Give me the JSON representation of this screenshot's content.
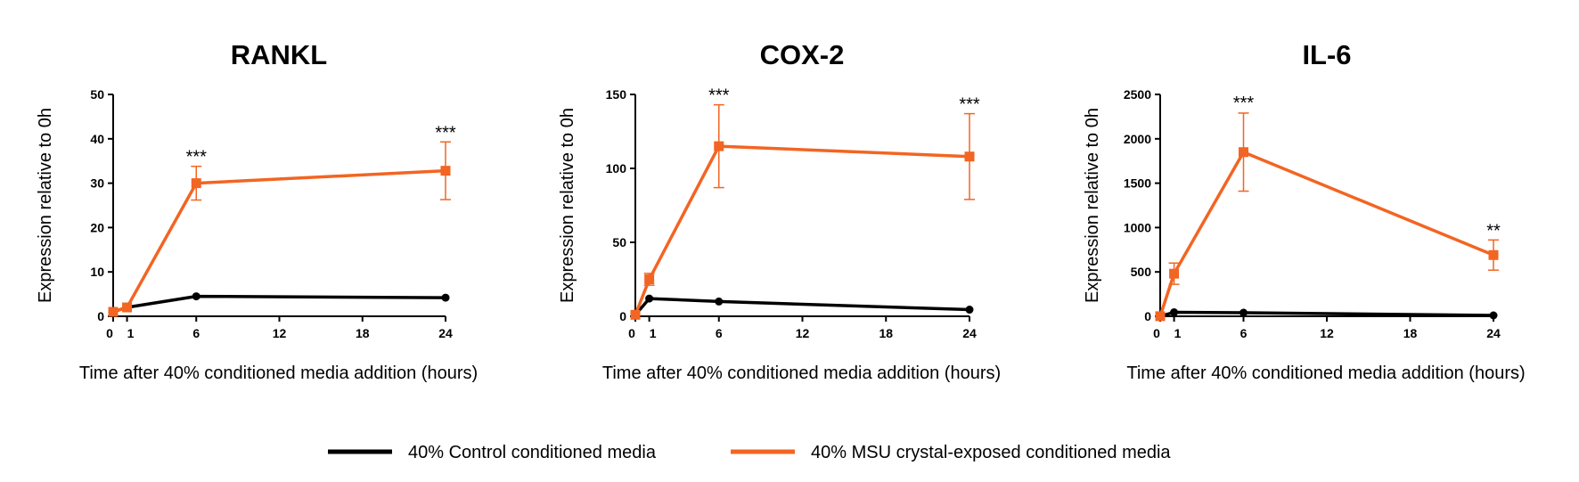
{
  "colors": {
    "control": "#000000",
    "msu": "#f26522",
    "axis": "#000000"
  },
  "legend": {
    "control_label": "40% Control conditioned media",
    "msu_label": "40% MSU crystal-exposed conditioned media"
  },
  "chart_data": [
    {
      "type": "line",
      "title": "RANKL",
      "xlabel": "Time after 40% conditioned media addition (hours)",
      "ylabel": "Expression relative to 0h",
      "x_ticks": [
        "0",
        "1",
        "6",
        "12",
        "18",
        "24"
      ],
      "y_ticks": [
        "0",
        "10",
        "20",
        "30",
        "40",
        "50"
      ],
      "xlim": [
        0,
        24
      ],
      "ylim": [
        0,
        50
      ],
      "series": [
        {
          "name": "40% Control conditioned media",
          "x": [
            0,
            1,
            6,
            24
          ],
          "values": [
            1,
            2,
            4.5,
            4.2
          ],
          "errors": [
            0,
            0,
            0,
            0
          ]
        },
        {
          "name": "40% MSU crystal-exposed conditioned media",
          "x": [
            0,
            1,
            6,
            24
          ],
          "values": [
            1,
            2,
            30,
            32.8
          ],
          "errors": [
            0,
            0,
            3.8,
            6.5
          ]
        }
      ],
      "annotations": [
        {
          "x": 6,
          "y": 33.8,
          "text": "***"
        },
        {
          "x": 24,
          "y": 39.3,
          "text": "***"
        }
      ]
    },
    {
      "type": "line",
      "title": "COX-2",
      "xlabel": "Time after 40% conditioned media addition (hours)",
      "ylabel": "Expression relative to 0h",
      "x_ticks": [
        "0",
        "1",
        "6",
        "12",
        "18",
        "24"
      ],
      "y_ticks": [
        "0",
        "50",
        "100",
        "150"
      ],
      "xlim": [
        0,
        24
      ],
      "ylim": [
        0,
        150
      ],
      "series": [
        {
          "name": "40% Control conditioned media",
          "x": [
            0,
            1,
            6,
            24
          ],
          "values": [
            1,
            12,
            10,
            4.5
          ],
          "errors": [
            0,
            0,
            0,
            0
          ]
        },
        {
          "name": "40% MSU crystal-exposed conditioned media",
          "x": [
            0,
            1,
            6,
            24
          ],
          "values": [
            1,
            25,
            115,
            108
          ],
          "errors": [
            0,
            4,
            28,
            29
          ]
        }
      ],
      "annotations": [
        {
          "x": 6,
          "y": 143,
          "text": "***"
        },
        {
          "x": 24,
          "y": 137,
          "text": "***"
        }
      ]
    },
    {
      "type": "line",
      "title": "IL-6",
      "xlabel": "Time after 40% conditioned media addition (hours)",
      "ylabel": "Expression relative to 0h",
      "x_ticks": [
        "0",
        "1",
        "6",
        "12",
        "18",
        "24"
      ],
      "y_ticks": [
        "0",
        "500",
        "1000",
        "1500",
        "2000",
        "2500"
      ],
      "xlim": [
        0,
        24
      ],
      "ylim": [
        0,
        2500
      ],
      "series": [
        {
          "name": "40% Control conditioned media",
          "x": [
            0,
            1,
            6,
            24
          ],
          "values": [
            1,
            45,
            40,
            10
          ],
          "errors": [
            0,
            0,
            0,
            0
          ]
        },
        {
          "name": "40% MSU crystal-exposed conditioned media",
          "x": [
            0,
            1,
            6,
            24
          ],
          "values": [
            1,
            480,
            1850,
            690
          ],
          "errors": [
            0,
            120,
            440,
            170
          ]
        }
      ],
      "annotations": [
        {
          "x": 6,
          "y": 2300,
          "text": "***"
        },
        {
          "x": 24,
          "y": 860,
          "text": "**"
        }
      ]
    }
  ]
}
